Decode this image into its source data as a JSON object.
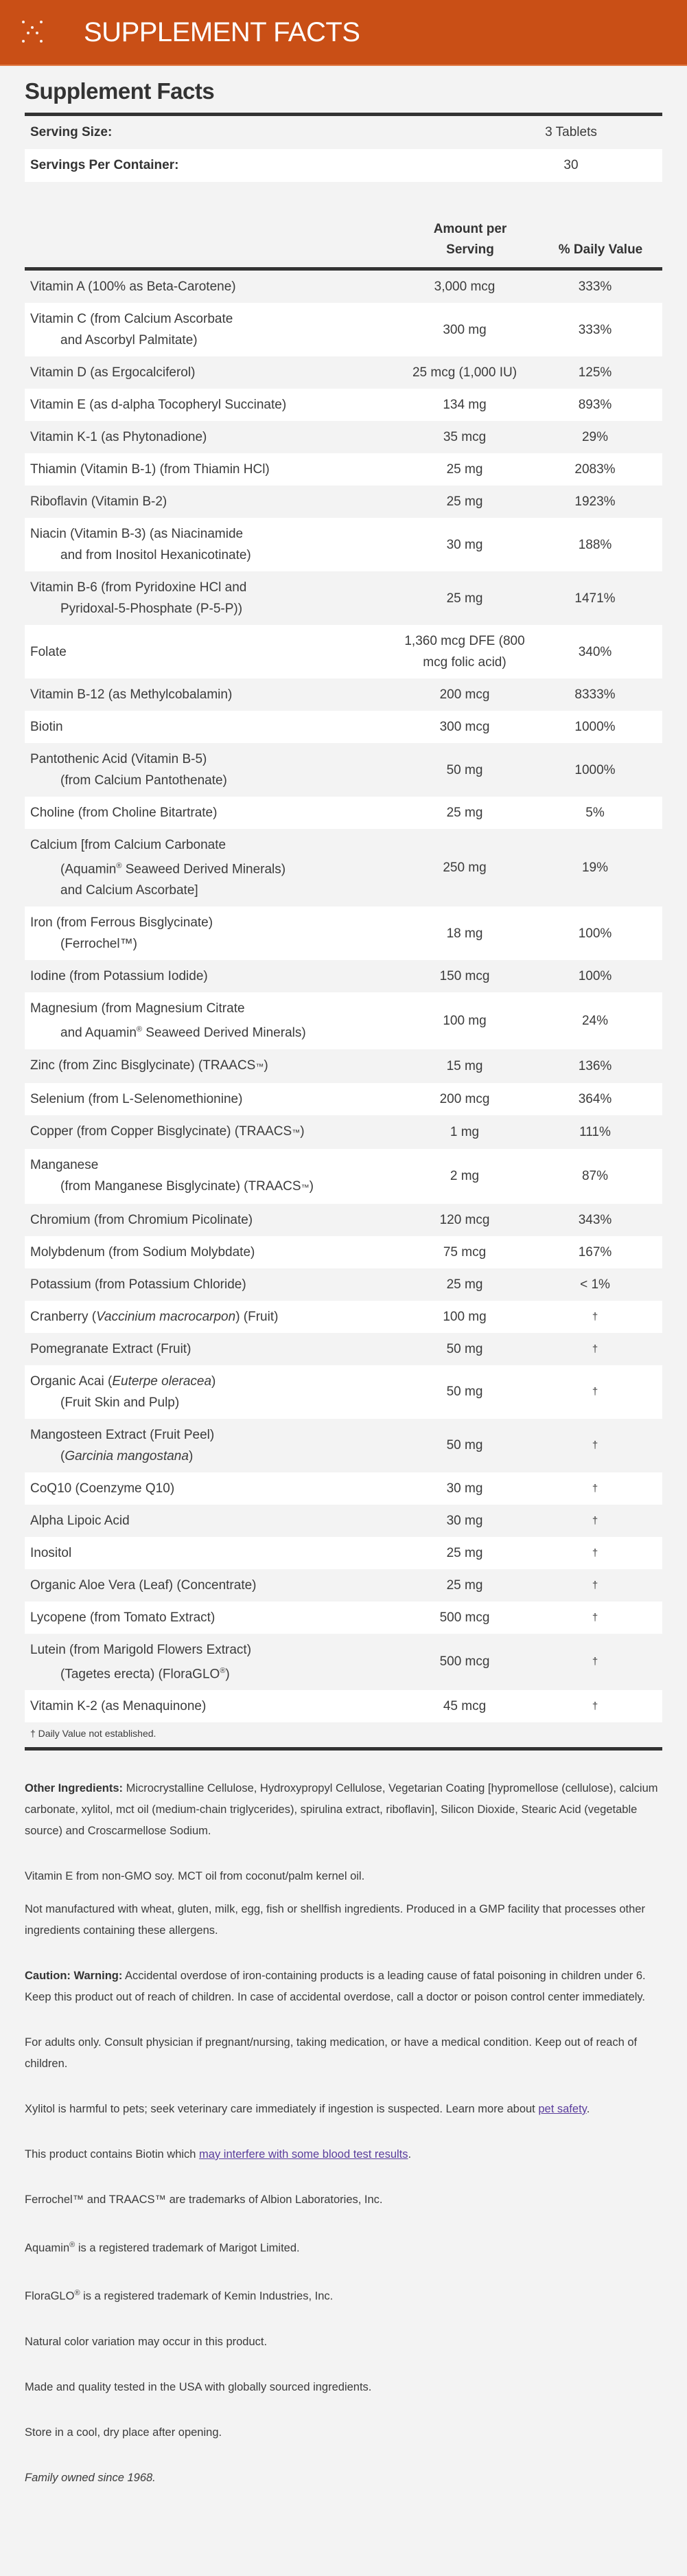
{
  "header": {
    "title": "SUPPLEMENT FACTS",
    "icon": "sparkle-dots-icon",
    "color": "#C94F16"
  },
  "facts": {
    "title": "Supplement Facts",
    "serving_size_label": "Serving Size:",
    "serving_size_value": "3 Tablets",
    "servings_label": "Servings Per Container:",
    "servings_value": "30",
    "col_amount": "Amount per Serving",
    "col_dv": "% Daily Value",
    "footnote": "† Daily Value not established."
  },
  "rows": [
    {
      "lines": [
        [
          "Vitamin A (100% as Beta-Carotene)"
        ]
      ],
      "amount": "3,000 mcg",
      "dv": "333%"
    },
    {
      "lines": [
        [
          "Vitamin C (from Calcium Ascorbate"
        ],
        [
          "and Ascorbyl Palmitate)"
        ]
      ],
      "amount": "300 mg",
      "dv": "333%"
    },
    {
      "lines": [
        [
          "Vitamin D (as Ergocalciferol)"
        ]
      ],
      "amount": "25 mcg (1,000 IU)",
      "dv": "125%"
    },
    {
      "lines": [
        [
          "Vitamin E (as d-alpha Tocopheryl Succinate)"
        ]
      ],
      "amount": "134 mg",
      "dv": "893%"
    },
    {
      "lines": [
        [
          "Vitamin K-1 (as Phytonadione)"
        ]
      ],
      "amount": "35 mcg",
      "dv": "29%"
    },
    {
      "lines": [
        [
          "Thiamin (Vitamin B-1) (from Thiamin HCl)"
        ]
      ],
      "amount": "25 mg",
      "dv": "2083%"
    },
    {
      "lines": [
        [
          "Riboflavin (Vitamin B-2)"
        ]
      ],
      "amount": "25 mg",
      "dv": "1923%"
    },
    {
      "lines": [
        [
          "Niacin (Vitamin B-3) (as Niacinamide"
        ],
        [
          "and from Inositol Hexanicotinate)"
        ]
      ],
      "amount": "30 mg",
      "dv": "188%"
    },
    {
      "lines": [
        [
          "Vitamin B-6 (from Pyridoxine HCl and"
        ],
        [
          "Pyridoxal-5-Phosphate (P-5-P))"
        ]
      ],
      "amount": "25 mg",
      "dv": "1471%"
    },
    {
      "lines": [
        [
          "Folate"
        ]
      ],
      "amount": "1,360 mcg DFE (800 mcg folic acid)",
      "dv": "340%"
    },
    {
      "lines": [
        [
          "Vitamin B-12 (as Methylcobalamin)"
        ]
      ],
      "amount": "200 mcg",
      "dv": "8333%"
    },
    {
      "lines": [
        [
          "Biotin"
        ]
      ],
      "amount": "300 mcg",
      "dv": "1000%"
    },
    {
      "lines": [
        [
          "Pantothenic Acid (Vitamin B-5)"
        ],
        [
          "(from Calcium Pantothenate)"
        ]
      ],
      "amount": "50 mg",
      "dv": "1000%"
    },
    {
      "lines": [
        [
          "Choline (from Choline Bitartrate)"
        ]
      ],
      "amount": "25 mg",
      "dv": "5%"
    },
    {
      "lines": [
        [
          "Calcium [from Calcium Carbonate"
        ],
        [
          "(Aquamin",
          {
            "sup": "®"
          },
          " Seaweed Derived Minerals)"
        ],
        [
          "and Calcium Ascorbate]"
        ]
      ],
      "amount": "250 mg",
      "dv": "19%"
    },
    {
      "lines": [
        [
          "Iron (from Ferrous Bisglycinate)"
        ],
        [
          "(Ferrochel™)"
        ]
      ],
      "amount": "18 mg",
      "dv": "100%"
    },
    {
      "lines": [
        [
          "Iodine (from Potassium Iodide)"
        ]
      ],
      "amount": "150 mcg",
      "dv": "100%"
    },
    {
      "lines": [
        [
          "Magnesium (from Magnesium Citrate"
        ],
        [
          "and Aquamin",
          {
            "sup": "®"
          },
          " Seaweed Derived Minerals)"
        ]
      ],
      "amount": "100 mg",
      "dv": "24%"
    },
    {
      "lines": [
        [
          "Zinc (from Zinc Bisglycinate) (TRAACS",
          {
            "tm": "™"
          },
          ")"
        ]
      ],
      "amount": "15 mg",
      "dv": "136%"
    },
    {
      "lines": [
        [
          "Selenium (from L-Selenomethionine)"
        ]
      ],
      "amount": "200 mcg",
      "dv": "364%"
    },
    {
      "lines": [
        [
          "Copper (from Copper Bisglycinate) (TRAACS",
          {
            "tm": "™"
          },
          ")"
        ]
      ],
      "amount": "1 mg",
      "dv": "111%"
    },
    {
      "lines": [
        [
          "Manganese"
        ],
        [
          "(from Manganese Bisglycinate) (TRAACS",
          {
            "tm": "™"
          },
          ")"
        ]
      ],
      "amount": "2 mg",
      "dv": "87%"
    },
    {
      "lines": [
        [
          "Chromium (from Chromium Picolinate)"
        ]
      ],
      "amount": "120 mcg",
      "dv": "343%"
    },
    {
      "lines": [
        [
          "Molybdenum (from Sodium Molybdate)"
        ]
      ],
      "amount": "75 mcg",
      "dv": "167%"
    },
    {
      "lines": [
        [
          "Potassium (from Potassium Chloride)"
        ]
      ],
      "amount": "25 mg",
      "dv": "< 1%"
    },
    {
      "lines": [
        [
          "Cranberry (",
          {
            "i": "Vaccinium macrocarpon"
          },
          ") (Fruit)"
        ]
      ],
      "amount": "100 mg",
      "dv": "†"
    },
    {
      "lines": [
        [
          "Pomegranate Extract (Fruit)"
        ]
      ],
      "amount": "50 mg",
      "dv": "†"
    },
    {
      "lines": [
        [
          "Organic Acai (",
          {
            "i": "Euterpe oleracea"
          },
          ")"
        ],
        [
          "(Fruit Skin and Pulp)"
        ]
      ],
      "amount": "50 mg",
      "dv": "†"
    },
    {
      "lines": [
        [
          "Mangosteen Extract (Fruit Peel)"
        ],
        [
          "(",
          {
            "i": "Garcinia mangostana"
          },
          ")"
        ]
      ],
      "amount": "50 mg",
      "dv": "†"
    },
    {
      "lines": [
        [
          "CoQ10 (Coenzyme Q10)"
        ]
      ],
      "amount": "30 mg",
      "dv": "†"
    },
    {
      "lines": [
        [
          "Alpha Lipoic Acid"
        ]
      ],
      "amount": "30 mg",
      "dv": "†"
    },
    {
      "lines": [
        [
          "Inositol"
        ]
      ],
      "amount": "25 mg",
      "dv": "†"
    },
    {
      "lines": [
        [
          "Organic Aloe Vera (Leaf) (Concentrate)"
        ]
      ],
      "amount": "25 mg",
      "dv": "†"
    },
    {
      "lines": [
        [
          "Lycopene (from Tomato Extract)"
        ]
      ],
      "amount": "500 mcg",
      "dv": "†"
    },
    {
      "lines": [
        [
          "Lutein (from Marigold Flowers Extract)"
        ],
        [
          "(Tagetes erecta) (FloraGLO",
          {
            "sup": "®"
          },
          ")"
        ]
      ],
      "amount": "500 mcg",
      "dv": "†"
    },
    {
      "lines": [
        [
          "Vitamin K-2 (as Menaquinone)"
        ]
      ],
      "amount": "45 mcg",
      "dv": "†"
    }
  ],
  "notes": {
    "other_label": "Other Ingredients:",
    "other_text": " Microcrystalline Cellulose, Hydroxypropyl Cellulose, Vegetarian Coating [hypromellose (cellulose), calcium carbonate, xylitol, mct oil (medium-chain triglycerides), spirulina extract, riboflavin], Silicon Dioxide, Stearic Acid (vegetable source) and Croscarmellose Sodium.",
    "vitamin_e": "Vitamin E from non-GMO soy. MCT oil from coconut/palm kernel oil.",
    "allergens": "Not manufactured with wheat, gluten, milk, egg, fish or shellfish ingredients. Produced in a GMP facility that processes other ingredients containing these allergens.",
    "caution_label": "Caution: Warning:",
    "caution_text": " Accidental overdose of iron-containing products is a leading cause of fatal poisoning in children under 6. Keep this product out of reach of children. In case of accidental overdose, call a doctor or poison control center immediately.",
    "adults": "For adults only. Consult physician if pregnant/nursing, taking medication, or have a medical condition. Keep out of reach of children.",
    "xylitol_text": "Xylitol is harmful to pets; seek veterinary care immediately if ingestion is suspected. Learn more about ",
    "xylitol_link": "pet safety",
    "biotin_text": "This product contains Biotin which ",
    "biotin_link": "may interfere with some blood test results",
    "trademarks": "Ferrochel™ and TRAACS™ are trademarks of Albion Laboratories, Inc.",
    "aquamin_a": "Aquamin",
    "aquamin_b": " is a registered trademark of Marigot Limited.",
    "floraglo_a": "FloraGLO",
    "floraglo_b": " is a registered trademark of Kemin Industries, Inc.",
    "reg": "®",
    "period": ".",
    "color_var": "Natural color variation may occur in this product.",
    "made_usa": "Made and quality tested in the USA with globally sourced ingredients.",
    "store": "Store in a cool, dry place after opening.",
    "family": "Family owned since 1968.",
    "link_color": "#5A3D9C"
  }
}
